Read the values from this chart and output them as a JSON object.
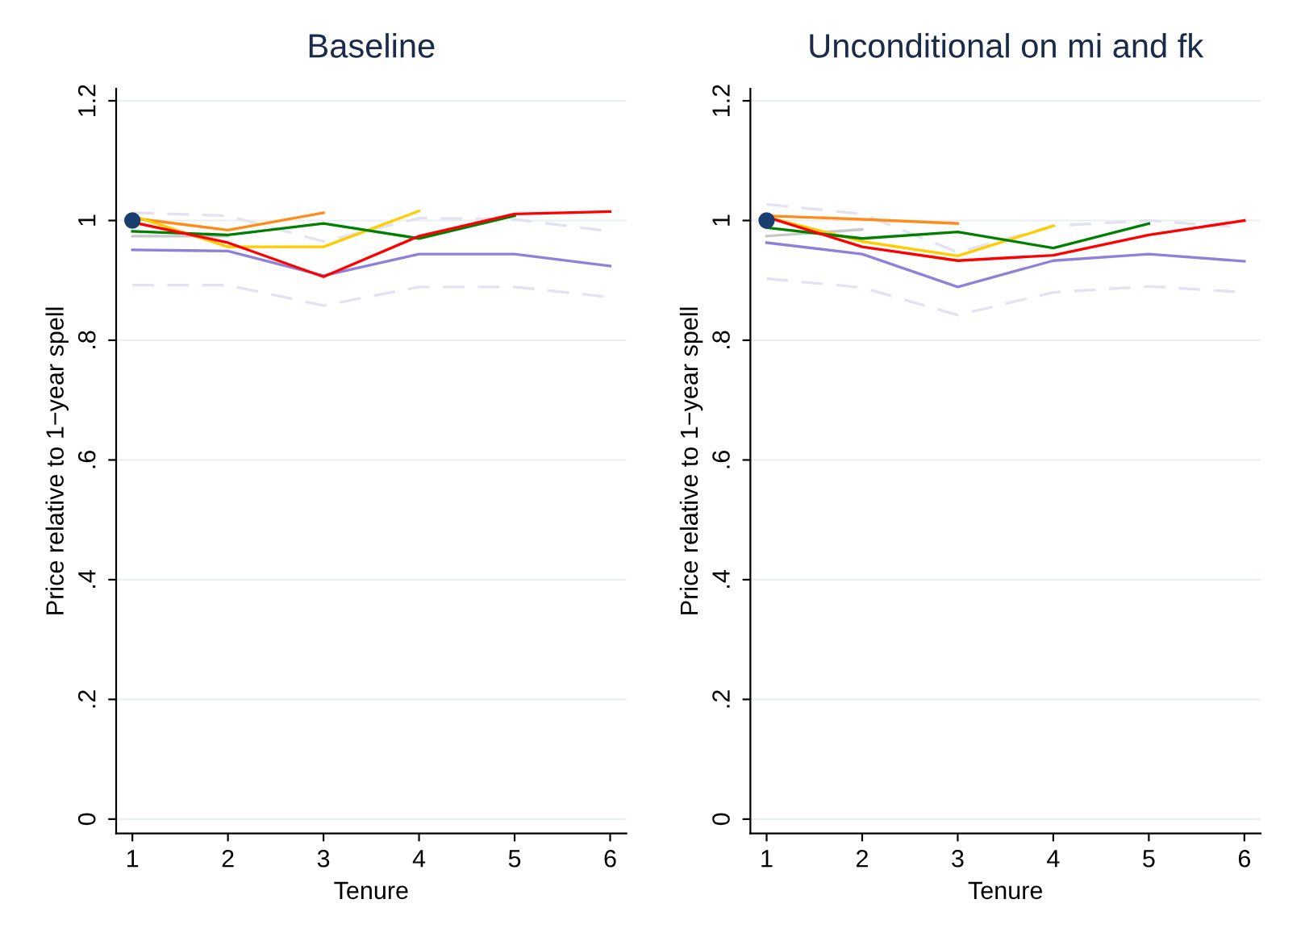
{
  "chart_data": [
    {
      "type": "line",
      "title": "Baseline",
      "xlabel": "Tenure",
      "ylabel": "Price relative to 1−year spell",
      "grid": "y",
      "xlim": [
        0.83,
        6.17
      ],
      "xticks": [
        1,
        2,
        3,
        4,
        5,
        6
      ],
      "ylim": [
        -0.024,
        1.22
      ],
      "yticks": [
        0,
        {
          "value": 0.2,
          "label": ".2"
        },
        {
          "value": 0.4,
          "label": ".4"
        },
        {
          "value": 0.6,
          "label": ".6"
        },
        {
          "value": 0.8,
          "label": ".8"
        },
        1,
        1.2
      ],
      "series": [
        {
          "color": "#e2e2f2",
          "line_style": "dashed",
          "x": [
            1,
            2,
            3,
            4,
            5,
            6
          ],
          "values": [
            1.013,
            1.008,
            0.965,
            1.004,
            1.002,
            0.982
          ]
        },
        {
          "color": "#e2e2f2",
          "line_style": "dashed",
          "x": [
            1,
            2,
            3,
            4,
            5,
            6
          ],
          "values": [
            0.892,
            0.892,
            0.858,
            0.889,
            0.889,
            0.872
          ]
        },
        {
          "color": "#c8c8c8",
          "x": [
            1,
            2
          ],
          "values": [
            0.974,
            0.974
          ]
        },
        {
          "color": "#9080d8",
          "x": [
            1,
            2,
            3,
            4,
            5,
            6
          ],
          "values": [
            0.951,
            0.949,
            0.908,
            0.944,
            0.944,
            0.924
          ]
        },
        {
          "color": "#ff8c1a",
          "x": [
            1,
            2,
            3
          ],
          "values": [
            1.004,
            0.984,
            1.013
          ]
        },
        {
          "color": "#ffcc00",
          "x": [
            1,
            2,
            3,
            4
          ],
          "values": [
            1.008,
            0.956,
            0.956,
            1.016
          ]
        },
        {
          "color": "#008000",
          "x": [
            1,
            2,
            3,
            4,
            5
          ],
          "values": [
            0.982,
            0.976,
            0.995,
            0.97,
            1.008
          ]
        },
        {
          "color": "#ff0000",
          "x": [
            1,
            2,
            3,
            4,
            5,
            6
          ],
          "values": [
            0.997,
            0.963,
            0.906,
            0.974,
            1.011,
            1.015
          ]
        },
        {
          "type": "scatter",
          "color": "#1a3f6f",
          "marker": "circle",
          "x": [
            1
          ],
          "values": [
            1
          ]
        }
      ]
    },
    {
      "type": "line",
      "title": "Unconditional on mi and fk",
      "xlabel": "Tenure",
      "ylabel": "Price relative to 1−year spell",
      "grid": "y",
      "xlim": [
        0.83,
        6.17
      ],
      "xticks": [
        1,
        2,
        3,
        4,
        5,
        6
      ],
      "ylim": [
        -0.024,
        1.22
      ],
      "yticks": [
        0,
        {
          "value": 0.2,
          "label": ".2"
        },
        {
          "value": 0.4,
          "label": ".4"
        },
        {
          "value": 0.6,
          "label": ".6"
        },
        {
          "value": 0.8,
          "label": ".8"
        },
        1,
        1.2
      ],
      "series": [
        {
          "color": "#e2e2f2",
          "line_style": "dashed",
          "x": [
            1,
            2,
            3,
            4,
            5,
            6
          ],
          "values": [
            1.027,
            1.011,
            0.947,
            0.991,
            1.0,
            0.988
          ]
        },
        {
          "color": "#e2e2f2",
          "line_style": "dashed",
          "x": [
            1,
            2,
            3,
            4,
            5,
            6
          ],
          "values": [
            0.903,
            0.888,
            0.842,
            0.88,
            0.89,
            0.88
          ]
        },
        {
          "color": "#c8c8c8",
          "x": [
            1,
            2
          ],
          "values": [
            0.974,
            0.985
          ]
        },
        {
          "color": "#9080d8",
          "x": [
            1,
            2,
            3,
            4,
            5,
            6
          ],
          "values": [
            0.963,
            0.944,
            0.889,
            0.933,
            0.944,
            0.932
          ]
        },
        {
          "color": "#ff8c1a",
          "x": [
            1,
            2,
            3
          ],
          "values": [
            1.008,
            1.002,
            0.995
          ]
        },
        {
          "color": "#ffcc00",
          "x": [
            1,
            2,
            3,
            4
          ],
          "values": [
            1.006,
            0.965,
            0.941,
            0.991
          ]
        },
        {
          "color": "#008000",
          "x": [
            1,
            2,
            3,
            4,
            5
          ],
          "values": [
            0.988,
            0.97,
            0.981,
            0.954,
            0.995
          ]
        },
        {
          "color": "#ff0000",
          "x": [
            1,
            2,
            3,
            4,
            5,
            6
          ],
          "values": [
            1.006,
            0.956,
            0.933,
            0.942,
            0.976,
            1.0
          ]
        },
        {
          "type": "scatter",
          "color": "#1a3f6f",
          "marker": "circle",
          "x": [
            1
          ],
          "values": [
            1
          ]
        }
      ]
    }
  ]
}
